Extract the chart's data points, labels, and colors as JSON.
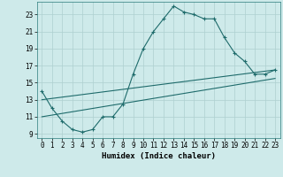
{
  "title": "",
  "xlabel": "Humidex (Indice chaleur)",
  "bg_color": "#ceeaea",
  "grid_color": "#aed0d0",
  "line_color": "#1e6b6b",
  "line1_x": [
    0,
    1,
    2,
    3,
    4,
    5,
    6,
    7,
    8,
    9,
    10,
    11,
    12,
    13,
    14,
    15,
    16,
    17,
    18,
    19,
    20,
    21,
    22,
    23
  ],
  "line1_y": [
    14.0,
    12.0,
    10.5,
    9.5,
    9.2,
    9.5,
    11.0,
    11.0,
    12.5,
    16.0,
    19.0,
    21.0,
    22.5,
    24.0,
    23.3,
    23.0,
    22.5,
    22.5,
    20.3,
    18.5,
    17.5,
    16.0,
    16.0,
    16.5
  ],
  "line2_x": [
    0,
    23
  ],
  "line2_y": [
    13.0,
    16.5
  ],
  "line3_x": [
    0,
    23
  ],
  "line3_y": [
    11.0,
    15.5
  ],
  "xlim": [
    -0.5,
    23.5
  ],
  "ylim": [
    8.5,
    24.5
  ],
  "xticks": [
    0,
    1,
    2,
    3,
    4,
    5,
    6,
    7,
    8,
    9,
    10,
    11,
    12,
    13,
    14,
    15,
    16,
    17,
    18,
    19,
    20,
    21,
    22,
    23
  ],
  "yticks": [
    9,
    11,
    13,
    15,
    17,
    19,
    21,
    23
  ],
  "tick_fontsize": 5.5,
  "xlabel_fontsize": 6.5
}
